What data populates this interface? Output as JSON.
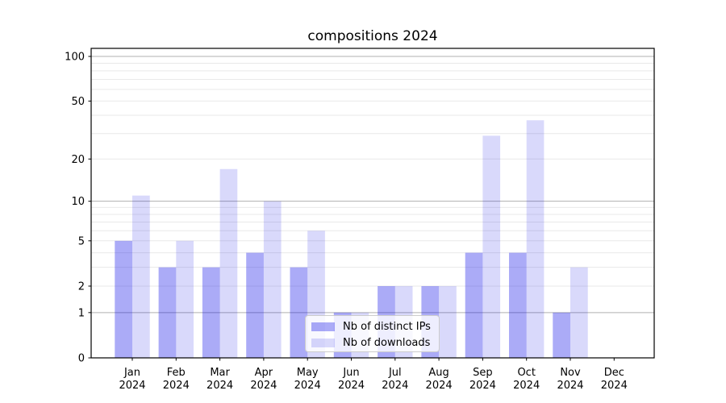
{
  "chart_data": {
    "type": "bar",
    "title": "compositions 2024",
    "categories": [
      "Jan 2024",
      "Feb 2024",
      "Mar 2024",
      "Apr 2024",
      "May 2024",
      "Jun 2024",
      "Jul 2024",
      "Aug 2024",
      "Sep 2024",
      "Oct 2024",
      "Nov 2024",
      "Dec 2024"
    ],
    "series": [
      {
        "name": "Nb of distinct IPs",
        "color": "#0000e6",
        "alpha": 0.33,
        "values": [
          5,
          3,
          3,
          4,
          3,
          1,
          2,
          2,
          4,
          4,
          1,
          0
        ]
      },
      {
        "name": "Nb of downloads",
        "color": "#0000e6",
        "alpha": 0.15,
        "values": [
          11,
          5,
          17,
          10,
          6,
          1,
          2,
          2,
          29,
          37,
          3,
          0
        ]
      }
    ],
    "yscale": "log1p",
    "ylim": [
      0,
      113
    ],
    "yticks": [
      0,
      1,
      2,
      5,
      10,
      20,
      50,
      100
    ],
    "major_gridlines": [
      1,
      10,
      100
    ],
    "minor_gridlines": [
      2,
      3,
      4,
      5,
      6,
      7,
      8,
      9,
      20,
      30,
      40,
      50,
      60,
      70,
      80,
      90
    ],
    "grid": true,
    "legend_position": "lower center"
  },
  "colors": {
    "major_grid": "#b0b0b0",
    "minor_grid": "#e9e9e9",
    "spine": "#000000",
    "tick_text": "#000000",
    "legend_border": "#cccccc",
    "background": "#ffffff"
  }
}
